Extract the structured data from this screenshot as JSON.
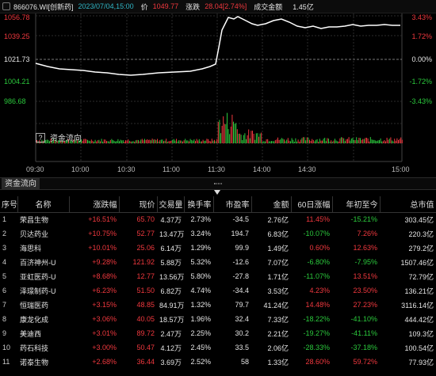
{
  "header": {
    "code": "866076.WI[创新药]",
    "datetime": "2023/07/04,15:00",
    "price_label": "价",
    "price": "1049.77",
    "change_label": "涨跌",
    "change": "28.04[2.74%]",
    "amount_label": "成交金额",
    "amount": "1.45亿"
  },
  "y_axis_left": [
    "1056.78",
    "1039.25",
    "1021.73",
    "1004.21",
    "986.68"
  ],
  "y_axis_right": [
    "3.43%",
    "1.72%",
    "0.00%",
    "-1.72%",
    "-3.43%"
  ],
  "volume_toggle_label": "资金流向",
  "time_axis": [
    "09:30",
    "10:00",
    "10:30",
    "11:00",
    "11:30",
    "14:00",
    "14:30",
    "15:00"
  ],
  "tab_label": "资金流向",
  "table": {
    "columns": [
      "序号",
      "名称",
      "涨跌幅",
      "现价",
      "交易量",
      "换手率",
      "市盈率",
      "金额",
      "60日涨幅",
      "年初至今",
      "总市值"
    ],
    "rows": [
      [
        "1",
        "荣昌生物",
        "+16.51%",
        "65.70",
        "4.37万",
        "2.73%",
        "-34.5",
        "2.76亿",
        "11.45%",
        "-15.21%",
        "303.45亿"
      ],
      [
        "2",
        "贝达药业",
        "+10.75%",
        "52.77",
        "13.47万",
        "3.24%",
        "194.7",
        "6.83亿",
        "-10.07%",
        "7.26%",
        "220.3亿"
      ],
      [
        "3",
        "海思科",
        "+10.01%",
        "25.06",
        "6.14万",
        "1.29%",
        "99.9",
        "1.49亿",
        "0.60%",
        "12.63%",
        "279.2亿"
      ],
      [
        "4",
        "百济神州-U",
        "+9.28%",
        "121.92",
        "5.88万",
        "5.32%",
        "-12.6",
        "7.07亿",
        "-6.80%",
        "-7.95%",
        "1507.46亿"
      ],
      [
        "5",
        "亚虹医药-U",
        "+8.68%",
        "12.77",
        "13.56万",
        "5.80%",
        "-27.8",
        "1.71亿",
        "-11.07%",
        "13.51%",
        "72.79亿"
      ],
      [
        "6",
        "泽璟制药-U",
        "+6.23%",
        "51.50",
        "6.82万",
        "4.74%",
        "-34.4",
        "3.53亿",
        "4.23%",
        "23.50%",
        "136.21亿"
      ],
      [
        "7",
        "恒瑞医药",
        "+3.15%",
        "48.85",
        "84.91万",
        "1.32%",
        "79.7",
        "41.24亿",
        "14.48%",
        "27.23%",
        "3116.14亿"
      ],
      [
        "8",
        "康龙化成",
        "+3.06%",
        "40.05",
        "18.57万",
        "1.96%",
        "32.4",
        "7.33亿",
        "-18.22%",
        "-41.10%",
        "444.42亿"
      ],
      [
        "9",
        "美迪西",
        "+3.01%",
        "89.72",
        "2.47万",
        "2.25%",
        "30.2",
        "2.21亿",
        "-19.27%",
        "-41.11%",
        "109.3亿"
      ],
      [
        "10",
        "药石科技",
        "+3.00%",
        "50.47",
        "4.12万",
        "2.45%",
        "33.5",
        "2.06亿",
        "-28.33%",
        "-37.18%",
        "100.54亿"
      ],
      [
        "11",
        "诺泰生物",
        "+2.68%",
        "36.44",
        "3.69万",
        "2.52%",
        "58",
        "1.33亿",
        "28.60%",
        "59.72%",
        "77.93亿"
      ]
    ]
  },
  "colors": {
    "up": "#f0383e",
    "down": "#2bc93c",
    "price_line": "#ffffff",
    "date_text": "#2fb5c5",
    "rank_badge": "#e2cd3e"
  }
}
